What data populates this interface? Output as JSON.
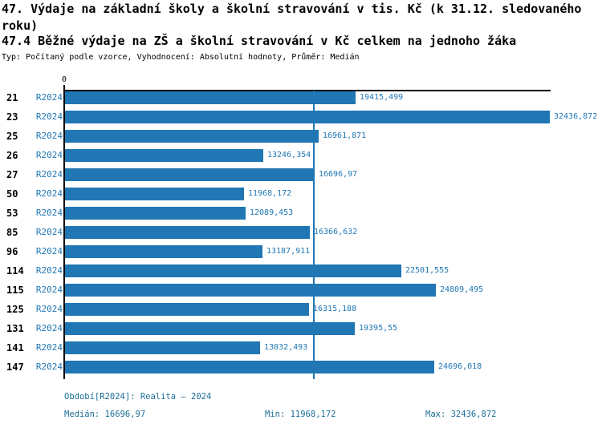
{
  "header": {
    "title_main": "47. Výdaje na základní školy a školní stravování v tis. Kč (k 31.12. sledovaného roku)",
    "title_sub": "47.4 Běžné výdaje na ZŠ a školní stravování v Kč celkem na jednoho žáka",
    "meta": "Typ: Počítaný podle vzorce, Vyhodnocení: Absolutní hodnoty, Průměr: Medián"
  },
  "colors": {
    "bar": "#2077b4",
    "chart_text": "#1f77b4",
    "footer_text": "#1b6e98",
    "axis": "#000000"
  },
  "chart_data": {
    "type": "bar",
    "orientation": "horizontal",
    "title": "47.4 Běžné výdaje na ZŠ a školní stravování v Kč celkem na jednoho žáka",
    "categories": [
      "21",
      "23",
      "25",
      "26",
      "27",
      "50",
      "53",
      "85",
      "96",
      "114",
      "115",
      "125",
      "131",
      "141",
      "147"
    ],
    "series_label": "R2024",
    "values": [
      19415.499,
      32436.872,
      16961.871,
      13246.354,
      16696.97,
      11968.172,
      12089.453,
      16366.632,
      13187.911,
      22501.555,
      24809.495,
      16315.188,
      19395.55,
      13032.493,
      24696.018
    ],
    "value_labels": [
      "19415,499",
      "32436,872",
      "16961,871",
      "13246,354",
      "16696,97",
      "11968,172",
      "12089,453",
      "16366,632",
      "13187,911",
      "22501,555",
      "24809,495",
      "16315,188",
      "19395,55",
      "13032,493",
      "24696,018"
    ],
    "xlim": [
      0,
      32436.872
    ],
    "x_axis_zero_label": "0",
    "median_line_value": 16696.97,
    "grid": false,
    "legend_position": "none"
  },
  "footer": {
    "period": "Období[R2024]: Realita – 2024",
    "median": "Medián: 16696,97",
    "min": "Min: 11968,172",
    "max": "Max: 32436,872"
  }
}
